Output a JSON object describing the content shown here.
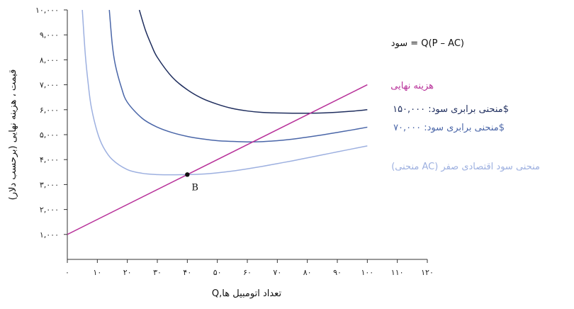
{
  "chart_data": {
    "type": "line",
    "title": "",
    "xlabel": "Q,تعداد اتومبیل ها",
    "ylabel": "قیمت ، هزینه نهایی (برحسب دلار)",
    "xlim": [
      0,
      120
    ],
    "ylim": [
      0,
      10000
    ],
    "x_ticks": [
      0,
      10,
      20,
      30,
      40,
      50,
      60,
      70,
      80,
      90,
      100,
      110,
      120
    ],
    "x_tick_labels": [
      "۰",
      "۱۰",
      "۲۰",
      "۳۰",
      "۴۰",
      "۵۰",
      "۶۰",
      "۷۰",
      "۸۰",
      "۹۰",
      "۱۰۰",
      "۱۱۰",
      "۱۲۰"
    ],
    "y_ticks": [
      1000,
      2000,
      3000,
      4000,
      5000,
      6000,
      7000,
      8000,
      9000,
      10000
    ],
    "y_tick_labels": [
      "۱,۰۰۰",
      "۲,۰۰۰",
      "۳,۰۰۰",
      "۴,۰۰۰",
      "۵,۰۰۰",
      "۶,۰۰۰",
      "۷,۰۰۰",
      "۸,۰۰۰",
      "۹,۰۰۰",
      "۱۰,۰۰۰"
    ],
    "grid": false,
    "formula": "سود = Q(P – AC)",
    "series": [
      {
        "name": "هزینه نهایی",
        "color": "#b8329a",
        "x": [
          0,
          100
        ],
        "y": [
          1000,
          7000
        ]
      },
      {
        "name": "منحنی برابری سود: ۱۵۰,۰۰۰$",
        "color": "#1f2e5e",
        "x": [
          24,
          26,
          28,
          30,
          35,
          40,
          45,
          50,
          55,
          60,
          65,
          70,
          75,
          80,
          85,
          90,
          95,
          100
        ],
        "y": [
          10000,
          9200,
          8600,
          8100,
          7300,
          6800,
          6450,
          6220,
          6050,
          5950,
          5890,
          5870,
          5860,
          5860,
          5870,
          5900,
          5940,
          6000
        ]
      },
      {
        "name": "منحنی برابری سود: ۷۰,۰۰۰$",
        "color": "#4a66a8",
        "x": [
          14,
          15,
          16,
          18,
          20,
          25,
          30,
          35,
          40,
          45,
          50,
          55,
          60,
          65,
          70,
          75,
          80,
          85,
          90,
          95,
          100
        ],
        "y": [
          10000,
          8600,
          7800,
          6900,
          6300,
          5650,
          5300,
          5080,
          4930,
          4830,
          4760,
          4730,
          4710,
          4720,
          4760,
          4820,
          4900,
          4990,
          5090,
          5190,
          5300
        ]
      },
      {
        "name": "(منحنی AC) منحنی سود اقتصادی صفر",
        "color": "#9db0e0",
        "x": [
          5,
          6,
          7,
          8,
          10,
          12,
          15,
          20,
          25,
          30,
          35,
          40,
          45,
          50,
          55,
          60,
          65,
          70,
          75,
          80,
          85,
          90,
          95,
          100
        ],
        "y": [
          10000,
          8200,
          7000,
          6100,
          5100,
          4500,
          4000,
          3600,
          3450,
          3400,
          3390,
          3400,
          3420,
          3470,
          3540,
          3630,
          3730,
          3840,
          3950,
          4070,
          4190,
          4310,
          4430,
          4550
        ]
      }
    ],
    "annotations": [
      {
        "label": "B",
        "x": 40,
        "y": 3400
      }
    ]
  },
  "labels": {
    "mc": "هزینه نهایی",
    "iso150": "منحنی برابری سود: ۱۵۰,۰۰۰$",
    "iso70": "منحنی برابری سود: ۷۰,۰۰۰$",
    "ac": "(منحنی AC) منحنی سود اقتصادی صفر",
    "formula": "سود = Q(P – AC)",
    "point_b": "B"
  }
}
